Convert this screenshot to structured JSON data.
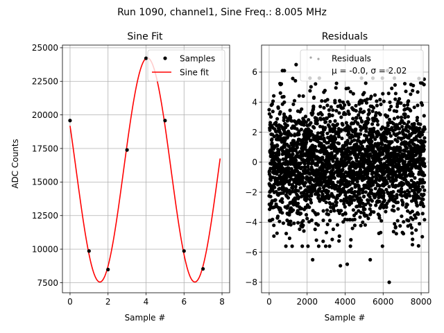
{
  "suptitle": "Run 1090, channel1, Sine Freq.: 8.005 MHz",
  "colors": {
    "fit": "#ff0000",
    "points": "#000000"
  },
  "chart_data": [
    {
      "type": "line",
      "title": "Sine Fit",
      "xlabel": "Sample #",
      "ylabel": "ADC Counts",
      "xlim": [
        -0.4,
        8.4
      ],
      "ylim": [
        6750,
        25200
      ],
      "xticks": [
        0,
        2,
        4,
        6,
        8
      ],
      "xtick_labels": [
        "0",
        "2",
        "4",
        "6",
        "8"
      ],
      "yticks": [
        7500,
        10000,
        12500,
        15000,
        17500,
        20000,
        22500,
        25000
      ],
      "ytick_labels": [
        "7500",
        "10000",
        "12500",
        "15000",
        "17500",
        "20000",
        "22500",
        "25000"
      ],
      "grid": true,
      "legend_position": "top-right",
      "series": [
        {
          "name": "Samples",
          "style": "scatter",
          "x": [
            0,
            1,
            2,
            3,
            4,
            5,
            6,
            7
          ],
          "y": [
            19580,
            9860,
            8480,
            17390,
            24220,
            19580,
            9860,
            8530
          ]
        },
        {
          "name": "Sine fit",
          "style": "line",
          "model": {
            "offset": 15900,
            "amplitude": 8350,
            "period_samples": 4.998,
            "peak_at_sample": 4.07
          },
          "x_range": [
            0,
            7.9
          ]
        }
      ]
    },
    {
      "type": "scatter",
      "title": "Residuals",
      "xlabel": "Sample #",
      "ylabel": "",
      "xlim": [
        -400,
        8400
      ],
      "ylim": [
        -8.7,
        7.8
      ],
      "xticks": [
        0,
        2000,
        4000,
        6000,
        8000
      ],
      "xtick_labels": [
        "0",
        "2000",
        "4000",
        "6000",
        "8000"
      ],
      "yticks": [
        -8,
        -6,
        -4,
        -2,
        0,
        2,
        4,
        6
      ],
      "ytick_labels": [
        "−8",
        "−6",
        "−4",
        "−2",
        "0",
        "2",
        "4",
        "6"
      ],
      "grid": true,
      "legend_position": "top-right",
      "series": [
        {
          "name": "Residuals",
          "count": 8192,
          "x_range": [
            0,
            8191
          ],
          "mean": -0.0,
          "std": 2.02,
          "extremes": [
            [
              1420,
              6.5
            ],
            [
              700,
              6.1
            ],
            [
              800,
              6.1
            ],
            [
              6230,
              6.1
            ],
            [
              6320,
              -8.0
            ],
            [
              3750,
              -6.9
            ],
            [
              4110,
              -6.8
            ],
            [
              2290,
              -6.5
            ],
            [
              5320,
              -6.5
            ]
          ]
        }
      ],
      "legend_stats": "μ = -0.0, σ = 2.02"
    }
  ]
}
